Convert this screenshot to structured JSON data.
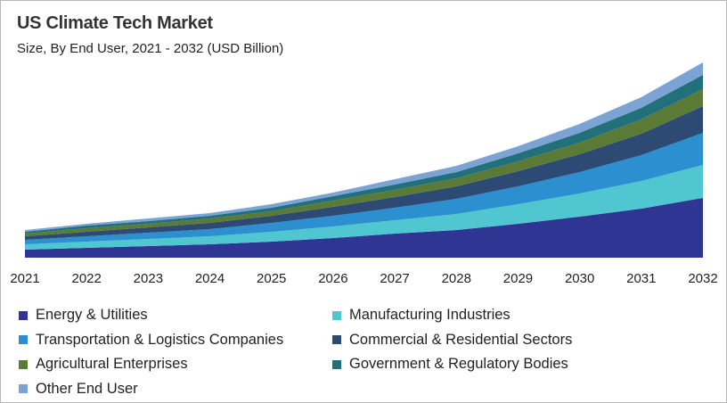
{
  "chart_data": {
    "type": "area",
    "stacked": true,
    "title": "US Climate Tech Market",
    "subtitle": "Size, By End User, 2021 - 2032 (USD Billion)",
    "xlabel": "",
    "ylabel": "",
    "y_axis_shown": false,
    "grid": false,
    "legend_placement": "bottom",
    "categories": [
      "2021",
      "2022",
      "2023",
      "2024",
      "2025",
      "2026",
      "2027",
      "2028",
      "2029",
      "2030",
      "2031",
      "2032"
    ],
    "ylim": [
      0,
      220
    ],
    "series": [
      {
        "name": "Energy & Utilities",
        "color": "#2e3592",
        "values": [
          9,
          11,
          13,
          15,
          18,
          22,
          27,
          31,
          38,
          46,
          55,
          67
        ]
      },
      {
        "name": "Manufacturing Industries",
        "color": "#4fc6d0",
        "values": [
          6,
          7,
          8,
          9,
          11,
          13,
          15,
          18,
          22,
          26,
          31,
          37
        ]
      },
      {
        "name": "Transportation & Logistics Companies",
        "color": "#2b8fd0",
        "values": [
          5,
          6,
          7,
          8,
          10,
          12,
          14,
          17,
          20,
          24,
          29,
          36
        ]
      },
      {
        "name": "Commercial & Residential Sectors",
        "color": "#2c4a74",
        "values": [
          4,
          5,
          6,
          7,
          8,
          10,
          12,
          14,
          17,
          20,
          24,
          30
        ]
      },
      {
        "name": "Agricultural Enterprises",
        "color": "#5b7a35",
        "values": [
          3,
          4,
          4,
          5,
          5,
          7,
          8,
          9,
          11,
          13,
          16,
          19
        ]
      },
      {
        "name": "Government & Regulatory Bodies",
        "color": "#22707a",
        "values": [
          2,
          3,
          3,
          3,
          4,
          5,
          6,
          7,
          9,
          11,
          13,
          16
        ]
      },
      {
        "name": "Other End User",
        "color": "#7ba3d3",
        "values": [
          2,
          2,
          3,
          3,
          4,
          4,
          6,
          7,
          8,
          10,
          12,
          14
        ]
      }
    ]
  }
}
